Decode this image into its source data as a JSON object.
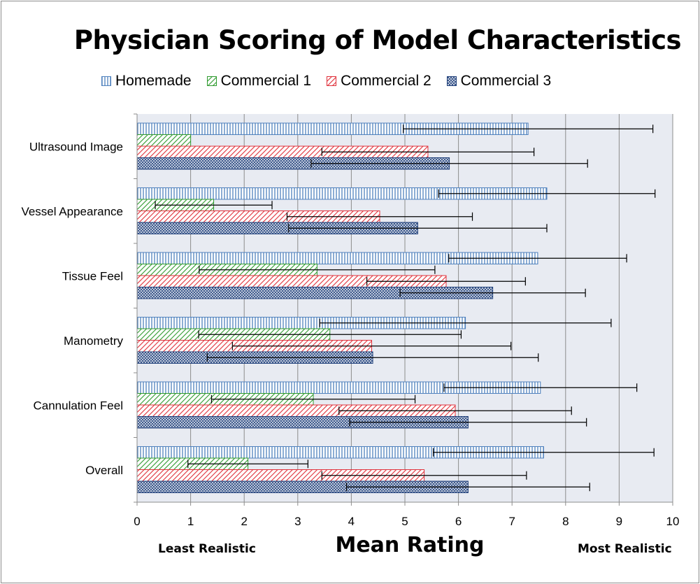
{
  "chart_data": {
    "type": "bar",
    "orientation": "horizontal",
    "title": "Physician Scoring of Model Characteristics",
    "xlabel": "Mean Rating",
    "x_annotations": {
      "left": "Least Realistic",
      "right": "Most Realistic"
    },
    "xlim": [
      0,
      10
    ],
    "xticks": [
      0,
      1,
      2,
      3,
      4,
      5,
      6,
      7,
      8,
      9,
      10
    ],
    "grid": true,
    "legend_position": "top",
    "categories": [
      "Ultrasound Image",
      "Vessel Appearance",
      "Tissue Feel",
      "Manometry",
      "Cannulation Feel",
      "Overall"
    ],
    "series": [
      {
        "name": "Homemade",
        "color": "#4f81bd",
        "pattern": "vertical-lines",
        "values": [
          7.3,
          7.65,
          7.48,
          6.13,
          7.53,
          7.59
        ],
        "errors": [
          2.33,
          2.02,
          1.66,
          2.72,
          1.8,
          2.06
        ]
      },
      {
        "name": "Commercial 1",
        "color": "#2e9a2e",
        "pattern": "diagonal-lines",
        "values": [
          1.0,
          1.43,
          3.36,
          3.6,
          3.29,
          2.07
        ],
        "errors": [
          0.0,
          1.09,
          2.2,
          2.45,
          1.9,
          1.12
        ]
      },
      {
        "name": "Commercial 2",
        "color": "#e0303a",
        "pattern": "diagonal-lines",
        "values": [
          5.43,
          4.53,
          5.77,
          4.38,
          5.94,
          5.36
        ],
        "errors": [
          1.98,
          1.73,
          1.48,
          2.6,
          2.17,
          1.91
        ]
      },
      {
        "name": "Commercial 3",
        "color": "#1f3f7a",
        "pattern": "diagonal-cross",
        "values": [
          5.83,
          5.24,
          6.64,
          4.4,
          6.18,
          6.18
        ],
        "errors": [
          2.58,
          2.41,
          1.73,
          3.09,
          2.21,
          2.27
        ]
      }
    ]
  }
}
